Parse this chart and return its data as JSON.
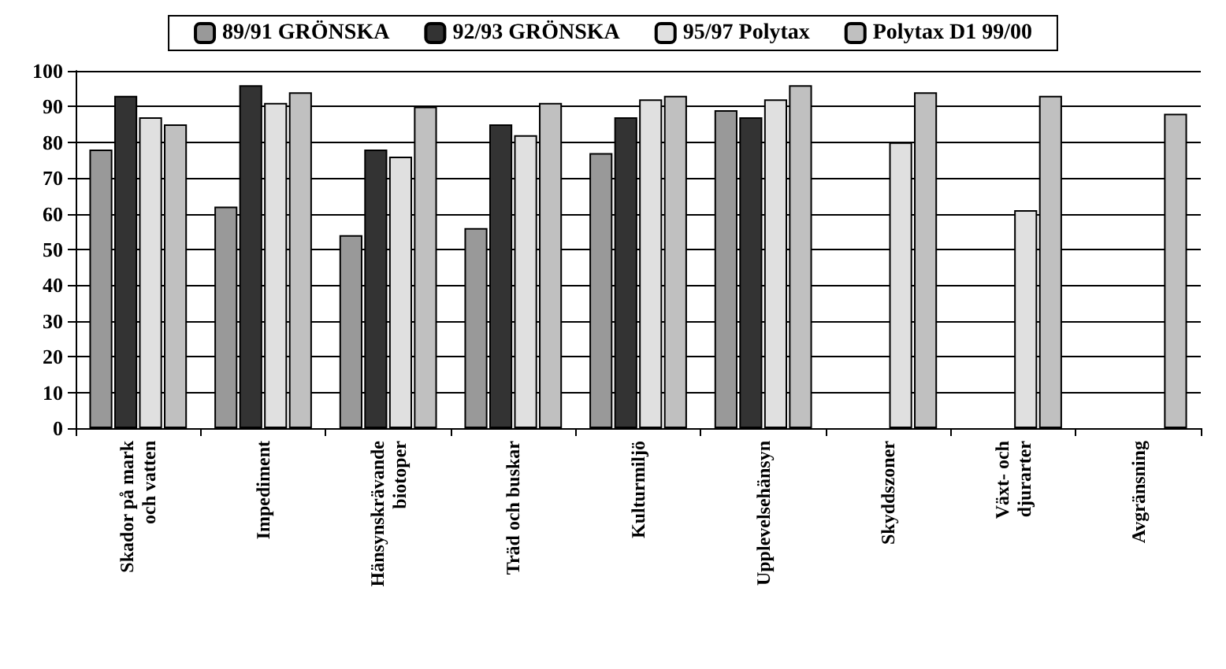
{
  "chart_data": {
    "type": "bar",
    "categories": [
      "Skador på mark\noch vatten",
      "Impediment",
      "Hänsynskrävande\nbiotoper",
      "Träd och buskar",
      "Kulturmiljö",
      "Upplevelsehänsyn",
      "Skyddszoner",
      "Växt- och\ndjurarter",
      "Avgränsning"
    ],
    "series": [
      {
        "name": "89/91 GRÖNSKA",
        "color": "#999999",
        "values": [
          78,
          62,
          54,
          56,
          77,
          89,
          null,
          null,
          null
        ]
      },
      {
        "name": "92/93 GRÖNSKA",
        "color": "#333333",
        "values": [
          93,
          96,
          78,
          85,
          87,
          87,
          null,
          null,
          null
        ]
      },
      {
        "name": "95/97 Polytax",
        "color": "#e0e0e0",
        "values": [
          87,
          91,
          76,
          82,
          92,
          92,
          80,
          61,
          null
        ]
      },
      {
        "name": "Polytax D1 99/00",
        "color": "#c0c0c0",
        "values": [
          85,
          94,
          90,
          91,
          93,
          96,
          94,
          93,
          88
        ]
      }
    ],
    "ylim": [
      0,
      100
    ],
    "yticks": [
      0,
      10,
      20,
      30,
      40,
      50,
      60,
      70,
      80,
      90,
      100
    ],
    "grid": "y",
    "legend": "top"
  }
}
